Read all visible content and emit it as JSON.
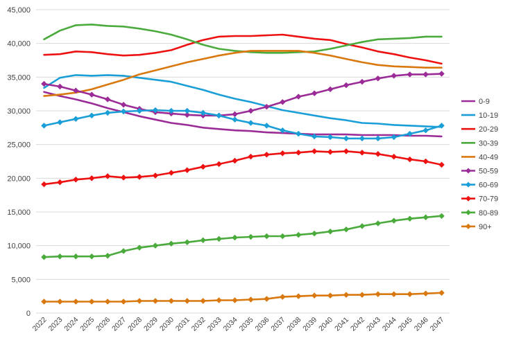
{
  "chart_data": {
    "type": "line",
    "title": "",
    "xlabel": "",
    "ylabel": "",
    "ylim": [
      0,
      45000
    ],
    "yticks": [
      0,
      5000,
      10000,
      15000,
      20000,
      25000,
      30000,
      35000,
      40000,
      45000
    ],
    "ytick_labels": [
      "0",
      "5,000",
      "10,000",
      "15,000",
      "20,000",
      "25,000",
      "30,000",
      "35,000",
      "40,000",
      "45,000"
    ],
    "grid": "horizontal",
    "legend_position": "right",
    "x": [
      "2022",
      "2023",
      "2024",
      "2025",
      "2026",
      "2027",
      "2028",
      "2029",
      "2030",
      "2031",
      "2032",
      "2033",
      "2034",
      "2035",
      "2036",
      "2037",
      "2038",
      "2039",
      "2040",
      "2041",
      "2042",
      "2043",
      "2044",
      "2045",
      "2046",
      "2047"
    ],
    "series": [
      {
        "name": "0-9",
        "color": "#9b2c97",
        "marker": "none",
        "values": [
          32800,
          32200,
          31700,
          31100,
          30400,
          29800,
          29200,
          28700,
          28200,
          27900,
          27500,
          27300,
          27100,
          27000,
          26800,
          26700,
          26600,
          26500,
          26500,
          26500,
          26400,
          26400,
          26400,
          26300,
          26300,
          26200
        ]
      },
      {
        "name": "10-19",
        "color": "#1a9ed8",
        "marker": "none",
        "values": [
          33400,
          34900,
          35300,
          35200,
          35300,
          35200,
          34900,
          34600,
          34300,
          33700,
          33100,
          32400,
          31800,
          31300,
          30700,
          30100,
          29700,
          29300,
          28900,
          28600,
          28200,
          28100,
          27900,
          27800,
          27700,
          27600
        ]
      },
      {
        "name": "20-29",
        "color": "#ee1111",
        "marker": "none",
        "values": [
          38300,
          38400,
          38800,
          38700,
          38400,
          38200,
          38300,
          38600,
          39000,
          39800,
          40500,
          41000,
          41100,
          41100,
          41200,
          41300,
          41000,
          40700,
          40500,
          39900,
          39400,
          38800,
          38400,
          37900,
          37500,
          37000
        ]
      },
      {
        "name": "30-39",
        "color": "#4aab3c",
        "marker": "none",
        "values": [
          40600,
          41900,
          42700,
          42800,
          42600,
          42500,
          42200,
          41800,
          41300,
          40600,
          39800,
          39200,
          38900,
          38700,
          38600,
          38600,
          38700,
          38800,
          39200,
          39700,
          40200,
          40600,
          40700,
          40800,
          41000,
          41000
        ]
      },
      {
        "name": "40-49",
        "color": "#d9780e",
        "marker": "none",
        "values": [
          32200,
          32400,
          32700,
          33200,
          33900,
          34600,
          35400,
          36000,
          36600,
          37200,
          37700,
          38200,
          38600,
          38900,
          38900,
          38900,
          38900,
          38600,
          38200,
          37700,
          37200,
          36800,
          36600,
          36500,
          36400,
          36400
        ]
      },
      {
        "name": "50-59",
        "color": "#9b2c97",
        "marker": "diamond",
        "values": [
          34000,
          33600,
          33000,
          32400,
          31700,
          30900,
          30300,
          29800,
          29600,
          29400,
          29300,
          29300,
          29500,
          30000,
          30600,
          31300,
          32100,
          32600,
          33200,
          33800,
          34300,
          34800,
          35200,
          35400,
          35400,
          35500
        ]
      },
      {
        "name": "60-69",
        "color": "#1a9ed8",
        "marker": "diamond",
        "values": [
          27800,
          28300,
          28800,
          29300,
          29700,
          29900,
          30000,
          30100,
          30000,
          30000,
          29700,
          29300,
          28700,
          28200,
          27800,
          27100,
          26600,
          26200,
          26100,
          25900,
          25900,
          25900,
          26100,
          26600,
          27100,
          27800
        ]
      },
      {
        "name": "70-79",
        "color": "#ee1111",
        "marker": "diamond",
        "values": [
          19100,
          19400,
          19800,
          20000,
          20300,
          20100,
          20200,
          20400,
          20800,
          21200,
          21700,
          22100,
          22600,
          23200,
          23500,
          23700,
          23800,
          24000,
          23900,
          24000,
          23800,
          23600,
          23200,
          22800,
          22500,
          22000
        ]
      },
      {
        "name": "80-89",
        "color": "#4aab3c",
        "marker": "diamond",
        "values": [
          8300,
          8400,
          8400,
          8400,
          8500,
          9200,
          9700,
          10000,
          10300,
          10500,
          10800,
          11000,
          11200,
          11300,
          11400,
          11400,
          11600,
          11800,
          12100,
          12400,
          12900,
          13300,
          13700,
          14000,
          14200,
          14400
        ]
      },
      {
        "name": "90+",
        "color": "#d9780e",
        "marker": "diamond",
        "values": [
          1700,
          1700,
          1700,
          1700,
          1700,
          1700,
          1800,
          1800,
          1800,
          1800,
          1800,
          1900,
          1900,
          2000,
          2100,
          2400,
          2500,
          2600,
          2600,
          2700,
          2700,
          2800,
          2800,
          2800,
          2900,
          3000
        ]
      }
    ]
  }
}
